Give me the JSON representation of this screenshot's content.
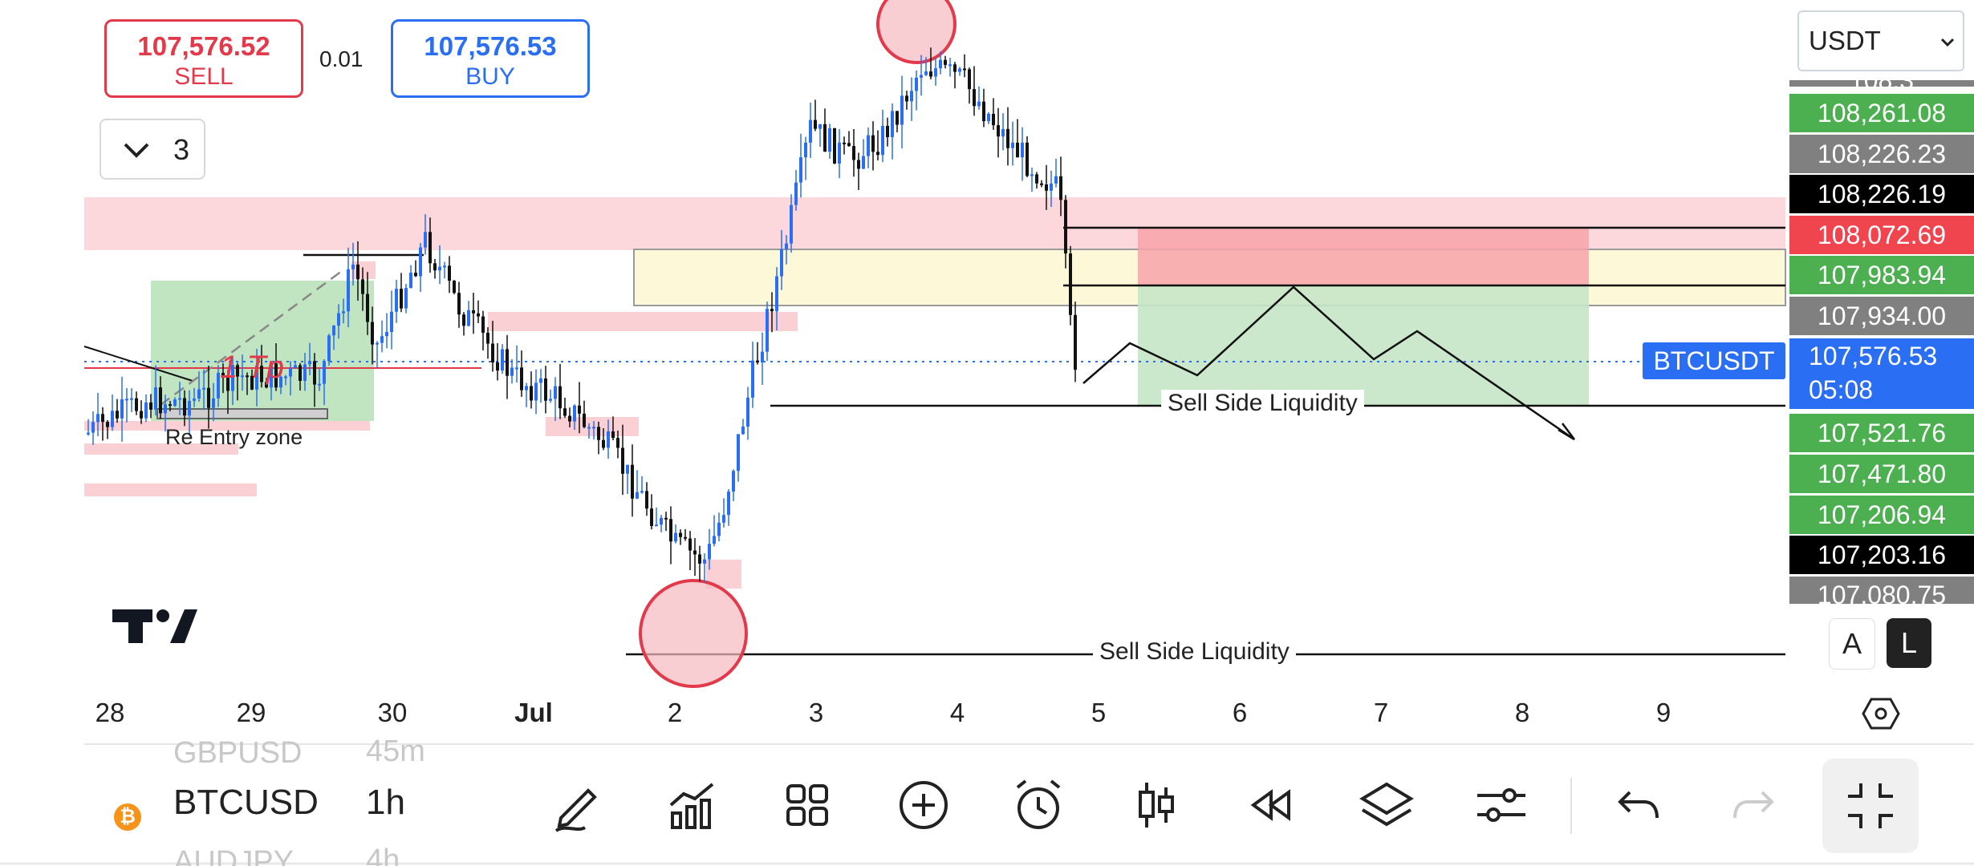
{
  "order_panel": {
    "sell_price": "107,576.52",
    "sell_label": "SELL",
    "lot_size": "0.01",
    "buy_price": "107,576.53",
    "buy_label": "BUY"
  },
  "drawing_group_count": "3",
  "currency_select": {
    "value": "USDT",
    "options_visible": [
      "USDT"
    ]
  },
  "price_scale": {
    "top_partial": "108,3",
    "tags": [
      {
        "price": "108,261.08",
        "color": "#4caf50"
      },
      {
        "price": "108,226.23",
        "color": "#808080"
      },
      {
        "price": "108,226.19",
        "color": "#000000"
      },
      {
        "price": "108,072.69",
        "color": "#f0454f"
      },
      {
        "price": "107,983.94",
        "color": "#4caf50"
      },
      {
        "price": "107,934.00",
        "color": "#808080"
      },
      {
        "price": "107,521.76",
        "color": "#4caf50"
      },
      {
        "price": "107,471.80",
        "color": "#4caf50"
      },
      {
        "price": "107,206.94",
        "color": "#4caf50"
      },
      {
        "price": "107,203.16",
        "color": "#000000"
      },
      {
        "price": "107,080.75",
        "color": "#808080"
      }
    ],
    "current": {
      "symbol": "BTCUSDT",
      "price": "107,576.53",
      "countdown": "05:08",
      "color": "#2a6ef4"
    }
  },
  "scale_buttons": {
    "auto": "A",
    "log": "L"
  },
  "time_axis": [
    "28",
    "29",
    "30",
    "Jul",
    "2",
    "3",
    "4",
    "5",
    "6",
    "7",
    "8",
    "9"
  ],
  "annotations": {
    "reentry": "Re Entry zone",
    "tp": "1 Tp",
    "ssl_upper": "Sell Side Liquidity",
    "ssl_lower": "Sell Side Liquidity"
  },
  "symbol_picker": {
    "above": "GBPUSD",
    "selected": "BTCUSD",
    "below": "AUDJPY"
  },
  "interval_picker": {
    "above": "45m",
    "selected": "1h",
    "below": "4h"
  },
  "toolbar": {
    "icons": [
      "pencil-icon",
      "indicator-icon",
      "grid-icon",
      "plus-circle-icon",
      "alarm-icon",
      "candles-icon",
      "rewind-icon",
      "layers-icon",
      "sliders-icon",
      "undo-icon",
      "redo-icon",
      "collapse-icon"
    ]
  },
  "chart_data": {
    "type": "candlestick",
    "symbol": "BTCUSDT",
    "interval": "1h",
    "x_ticks": [
      "28",
      "29",
      "30",
      "Jul",
      "2",
      "3",
      "4",
      "5",
      "6",
      "7",
      "8",
      "9"
    ],
    "current_price": 107576.53,
    "key_levels": [
      108261.08,
      108226.23,
      108226.19,
      108072.69,
      107983.94,
      107934.0,
      107521.76,
      107471.8,
      107206.94,
      107203.16,
      107080.75
    ],
    "approx_path": [
      {
        "day": "28",
        "close": 107150
      },
      {
        "day": "29",
        "close": 107400
      },
      {
        "day": "30",
        "close": 108050
      },
      {
        "day": "Jul",
        "close": 107650
      },
      {
        "day": "2",
        "close": 106700
      },
      {
        "day": "3",
        "close": 108250
      },
      {
        "day": "4",
        "close": 108400
      },
      {
        "day": "5",
        "close": 107580
      }
    ]
  }
}
